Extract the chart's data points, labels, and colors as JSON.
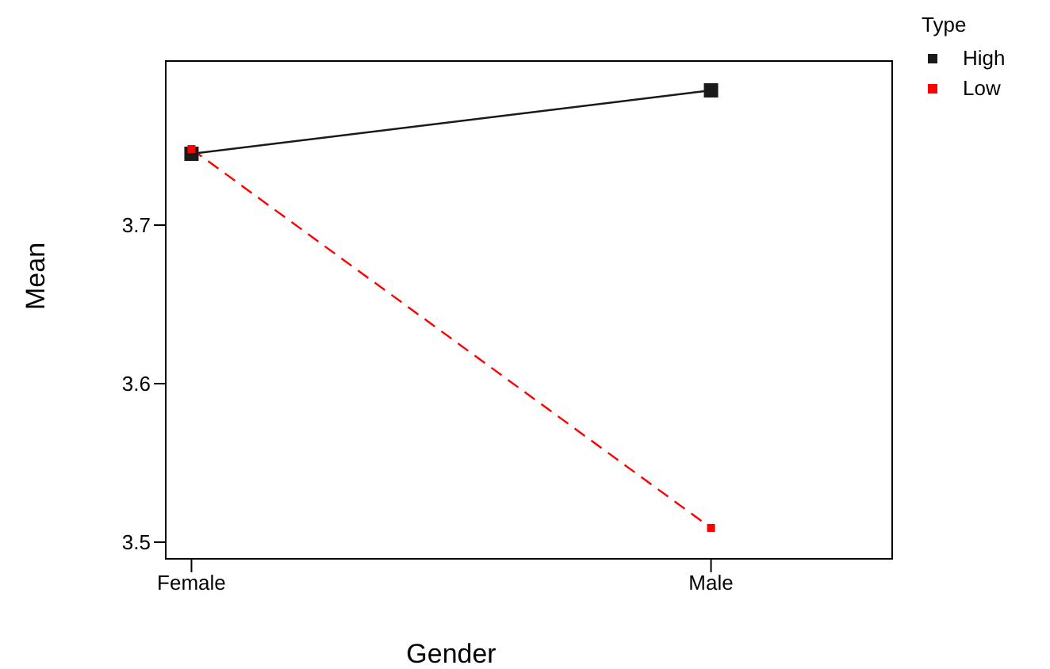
{
  "chart_data": {
    "type": "line",
    "xlabel": "Gender",
    "ylabel": "Mean",
    "legend_title": "Type",
    "categories": [
      "Female",
      "Male"
    ],
    "series": [
      {
        "name": "High",
        "color": "#1a1a1a",
        "values": [
          3.745,
          3.785
        ],
        "line_style": "solid"
      },
      {
        "name": "Low",
        "color": "#ff0000",
        "values": [
          3.748,
          3.509
        ],
        "line_style": "dashed"
      }
    ],
    "ylim": [
      3.489,
      3.804
    ],
    "yticks": [
      3.5,
      3.6,
      3.7
    ],
    "grid": false,
    "legend": "right",
    "marker": "square"
  }
}
